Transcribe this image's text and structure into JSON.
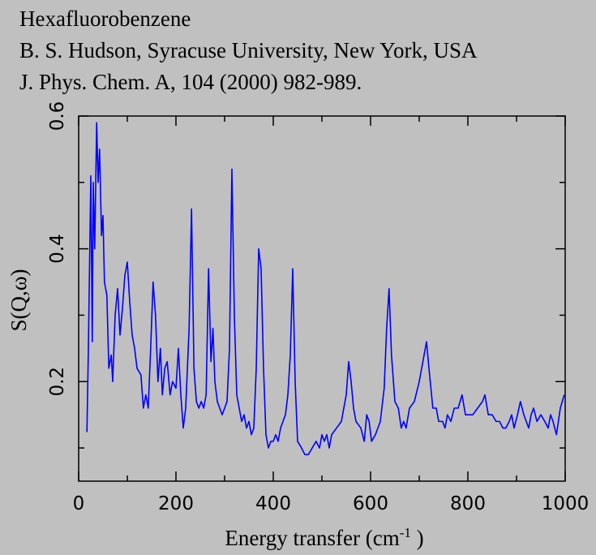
{
  "chart_data": {
    "type": "line",
    "title_lines": [
      "Hexafluorobenzene",
      "B. S. Hudson, Syracuse University, New York, USA",
      "J. Phys. Chem. A, 104 (2000) 982-989."
    ],
    "xlabel": [
      "Energy transfer (cm",
      "-1",
      " )"
    ],
    "ylabel": "S(Q,ω)",
    "xlim": [
      0,
      1000
    ],
    "xticks": [
      0,
      200,
      400,
      600,
      800,
      1000
    ],
    "xticks_minor": [
      100,
      300,
      500,
      700,
      900
    ],
    "ylim": [
      0.05,
      0.6
    ],
    "yticks": [
      0.2,
      0.4,
      0.6
    ],
    "yticks_minor": [
      0.1,
      0.3,
      0.5
    ],
    "series": [
      {
        "color": "#0000ff",
        "x": [
          17,
          20,
          25,
          28,
          30,
          33,
          37,
          40,
          43,
          47,
          50,
          53,
          58,
          62,
          67,
          70,
          75,
          80,
          85,
          90,
          95,
          100,
          105,
          110,
          115,
          120,
          128,
          133,
          138,
          143,
          148,
          153,
          158,
          163,
          168,
          172,
          177,
          182,
          188,
          193,
          200,
          205,
          210,
          215,
          220,
          227,
          232,
          237,
          242,
          247,
          252,
          257,
          262,
          267,
          272,
          276,
          280,
          285,
          290,
          295,
          300,
          305,
          310,
          315,
          320,
          325,
          330,
          335,
          340,
          345,
          350,
          355,
          360,
          365,
          370,
          375,
          380,
          385,
          390,
          395,
          400,
          405,
          410,
          415,
          420,
          425,
          430,
          435,
          440,
          445,
          450,
          458,
          465,
          472,
          480,
          488,
          495,
          500,
          505,
          510,
          515,
          520,
          530,
          540,
          550,
          555,
          560,
          565,
          570,
          580,
          587,
          592,
          597,
          602,
          610,
          620,
          628,
          633,
          638,
          643,
          650,
          657,
          663,
          668,
          673,
          680,
          690,
          700,
          710,
          715,
          720,
          728,
          735,
          740,
          748,
          753,
          758,
          765,
          772,
          780,
          788,
          795,
          810,
          820,
          830,
          835,
          842,
          850,
          858,
          865,
          872,
          878,
          885,
          890,
          895,
          902,
          908,
          915,
          920,
          925,
          930,
          935,
          942,
          950,
          958,
          965,
          970,
          975,
          982,
          990,
          998
        ],
        "values": [
          0.124,
          0.25,
          0.51,
          0.26,
          0.5,
          0.4,
          0.59,
          0.5,
          0.55,
          0.42,
          0.45,
          0.35,
          0.33,
          0.22,
          0.24,
          0.2,
          0.3,
          0.34,
          0.27,
          0.31,
          0.36,
          0.38,
          0.32,
          0.27,
          0.25,
          0.22,
          0.21,
          0.16,
          0.18,
          0.16,
          0.25,
          0.35,
          0.3,
          0.2,
          0.25,
          0.18,
          0.22,
          0.23,
          0.18,
          0.2,
          0.19,
          0.25,
          0.18,
          0.13,
          0.16,
          0.28,
          0.46,
          0.22,
          0.17,
          0.16,
          0.17,
          0.16,
          0.18,
          0.37,
          0.23,
          0.28,
          0.2,
          0.17,
          0.16,
          0.15,
          0.16,
          0.17,
          0.25,
          0.52,
          0.3,
          0.18,
          0.16,
          0.14,
          0.15,
          0.13,
          0.14,
          0.12,
          0.13,
          0.22,
          0.4,
          0.37,
          0.22,
          0.12,
          0.1,
          0.11,
          0.11,
          0.12,
          0.11,
          0.13,
          0.14,
          0.15,
          0.18,
          0.24,
          0.37,
          0.2,
          0.11,
          0.1,
          0.09,
          0.09,
          0.1,
          0.11,
          0.1,
          0.12,
          0.11,
          0.12,
          0.1,
          0.12,
          0.13,
          0.14,
          0.18,
          0.23,
          0.2,
          0.16,
          0.14,
          0.13,
          0.11,
          0.15,
          0.14,
          0.11,
          0.12,
          0.14,
          0.19,
          0.28,
          0.34,
          0.24,
          0.17,
          0.16,
          0.13,
          0.14,
          0.13,
          0.16,
          0.17,
          0.2,
          0.24,
          0.26,
          0.22,
          0.16,
          0.16,
          0.14,
          0.14,
          0.13,
          0.15,
          0.14,
          0.16,
          0.16,
          0.18,
          0.15,
          0.15,
          0.16,
          0.17,
          0.18,
          0.15,
          0.15,
          0.14,
          0.14,
          0.13,
          0.13,
          0.14,
          0.15,
          0.13,
          0.15,
          0.17,
          0.15,
          0.14,
          0.13,
          0.15,
          0.16,
          0.14,
          0.15,
          0.14,
          0.13,
          0.15,
          0.14,
          0.12,
          0.16,
          0.18
        ]
      }
    ]
  }
}
